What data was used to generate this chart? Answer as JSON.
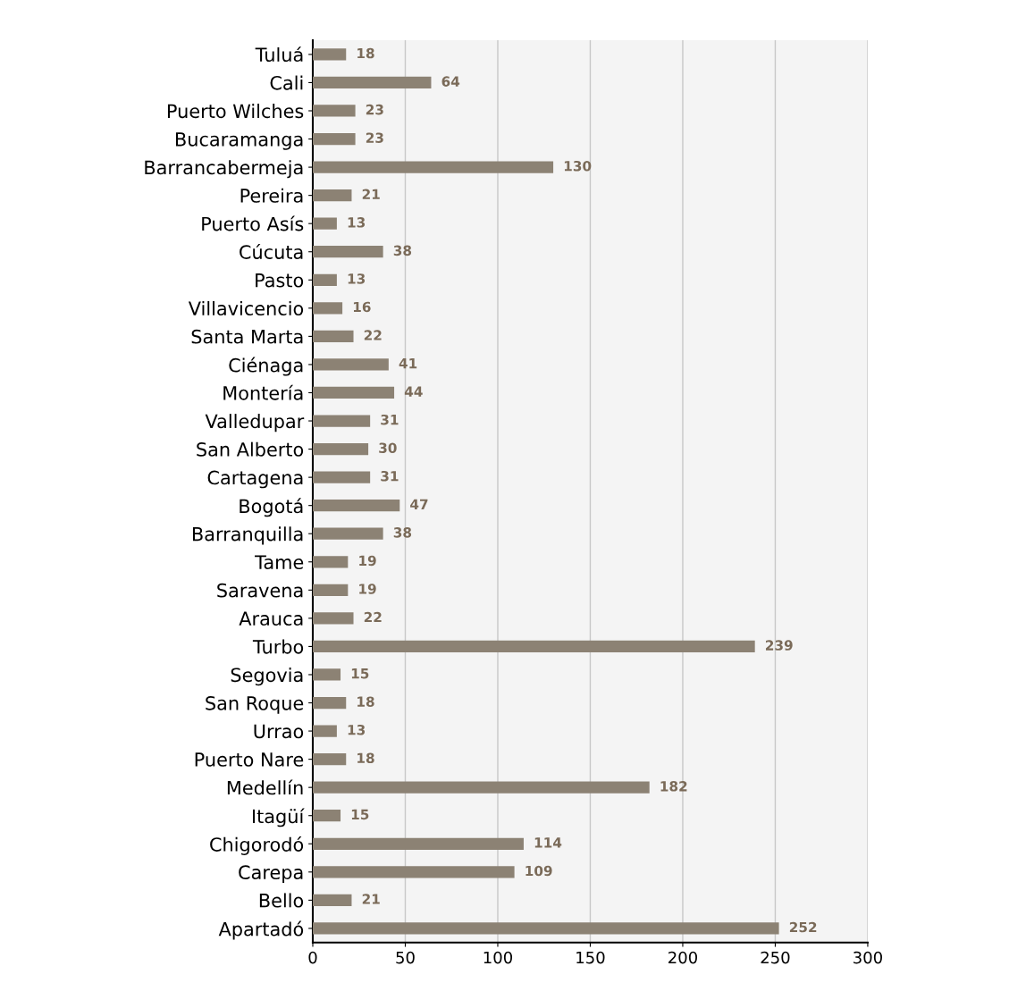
{
  "chart_data": {
    "type": "bar",
    "orientation": "horizontal",
    "categories": [
      "Tuluá",
      "Cali",
      "Puerto Wilches",
      "Bucaramanga",
      "Barrancabermeja",
      "Pereira",
      "Puerto Asís",
      "Cúcuta",
      "Pasto",
      "Villavicencio",
      "Santa Marta",
      "Ciénaga",
      "Montería",
      "Valledupar",
      "San Alberto",
      "Cartagena",
      "Bogotá",
      "Barranquilla",
      "Tame",
      "Saravena",
      "Arauca",
      "Turbo",
      "Segovia",
      "San Roque",
      "Urrao",
      "Puerto Nare",
      "Medellín",
      "Itagüí",
      "Chigorodó",
      "Carepa",
      "Bello",
      "Apartadó"
    ],
    "values": [
      18,
      64,
      23,
      23,
      130,
      21,
      13,
      38,
      13,
      16,
      22,
      41,
      44,
      31,
      30,
      31,
      47,
      38,
      19,
      19,
      22,
      239,
      15,
      18,
      13,
      18,
      182,
      15,
      114,
      109,
      21,
      252
    ],
    "color": "#8c8274",
    "xlim": [
      0,
      300
    ],
    "xticks": [
      0,
      50,
      100,
      150,
      200,
      250,
      300
    ],
    "grid": "x",
    "data_labels": true
  }
}
